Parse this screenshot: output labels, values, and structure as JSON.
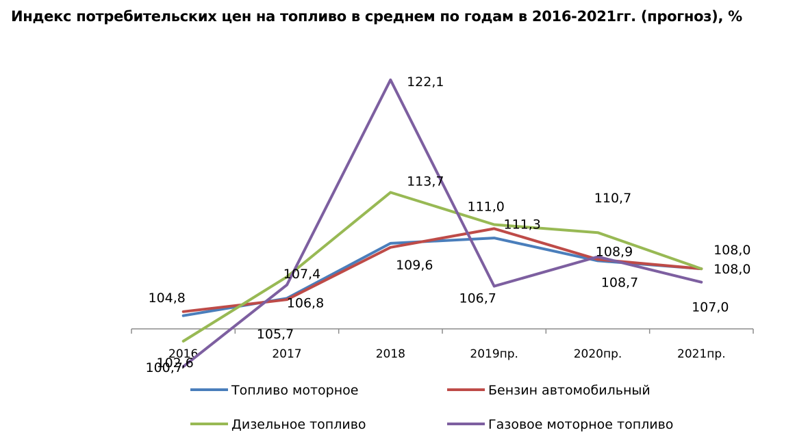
{
  "chart_data": {
    "type": "line",
    "title": "Индекс потребительских цен на топливо в среднем по годам в 2016-2021гг. (прогноз), %",
    "categories": [
      "2016",
      "2017",
      "2018",
      "2019пр.",
      "2020пр.",
      "2021пр."
    ],
    "ylim": [
      98,
      124
    ],
    "grid": false,
    "legend_position": "bottom",
    "series": [
      {
        "name": "Топливо моторное",
        "color": "#4a7ebb",
        "values": [
          104.5,
          105.8,
          109.9,
          110.3,
          108.6,
          108.0
        ]
      },
      {
        "name": "Бензин автомобильный",
        "color": "#be4b48",
        "values": [
          104.8,
          105.7,
          109.6,
          111.0,
          108.7,
          108.0
        ]
      },
      {
        "name": "Дизельное топливо",
        "color": "#98b954",
        "values": [
          102.6,
          107.4,
          113.7,
          111.3,
          110.7,
          108.0
        ]
      },
      {
        "name": "Газовое моторное топливо",
        "color": "#7d5fa0",
        "values": [
          100.7,
          106.8,
          122.1,
          106.7,
          108.9,
          107.0
        ]
      }
    ],
    "data_labels": [
      {
        "text": "104,8",
        "series": 1,
        "index": 0
      },
      {
        "text": "102,6",
        "series": 2,
        "index": 0
      },
      {
        "text": "100,7",
        "series": 3,
        "index": 0
      },
      {
        "text": "107,4",
        "series": 2,
        "index": 1
      },
      {
        "text": "106,8",
        "series": 3,
        "index": 1
      },
      {
        "text": "105,7",
        "series": 1,
        "index": 1
      },
      {
        "text": "122,1",
        "series": 3,
        "index": 2
      },
      {
        "text": "113,7",
        "series": 2,
        "index": 2
      },
      {
        "text": "109,6",
        "series": 1,
        "index": 2
      },
      {
        "text": "111,0",
        "series": 1,
        "index": 3
      },
      {
        "text": "111,3",
        "series": 2,
        "index": 3
      },
      {
        "text": "106,7",
        "series": 3,
        "index": 3
      },
      {
        "text": "110,7",
        "series": 2,
        "index": 4
      },
      {
        "text": "108,9",
        "series": 3,
        "index": 4
      },
      {
        "text": "108,7",
        "series": 1,
        "index": 4
      },
      {
        "text": "108,0",
        "series": 2,
        "index": 5
      },
      {
        "text": "108,0",
        "series": 1,
        "index": 5
      },
      {
        "text": "107,0",
        "series": 3,
        "index": 5
      }
    ]
  }
}
